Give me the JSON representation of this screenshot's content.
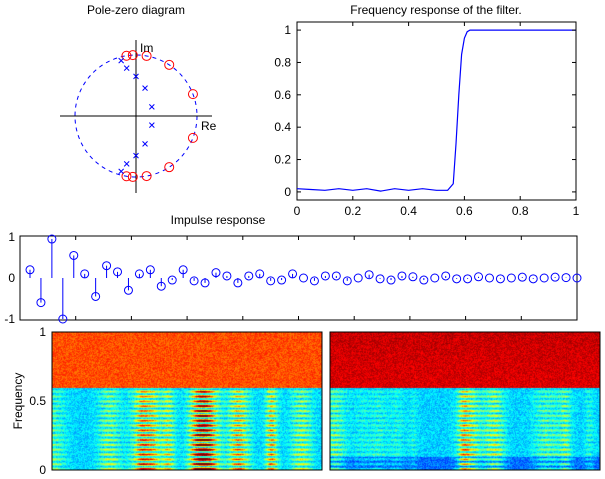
{
  "chart_data": [
    {
      "type": "scatter",
      "title": "Pole-zero diagram",
      "xlabel": "Re",
      "ylabel": "Im",
      "unit_circle": true,
      "zeros_angles_deg": [
        99,
        93,
        80,
        57,
        21,
        -21,
        -57,
        -80,
        -93,
        -99
      ],
      "poles": [
        {
          "r": 0.94,
          "angle_deg": 105
        },
        {
          "r": 0.8,
          "angle_deg": 101
        },
        {
          "r": 0.65,
          "angle_deg": 90
        },
        {
          "r": 0.48,
          "angle_deg": 72
        },
        {
          "r": 0.3,
          "angle_deg": 30
        },
        {
          "r": 0.94,
          "angle_deg": -105
        },
        {
          "r": 0.8,
          "angle_deg": -101
        },
        {
          "r": 0.65,
          "angle_deg": -90
        },
        {
          "r": 0.48,
          "angle_deg": -72
        },
        {
          "r": 0.3,
          "angle_deg": -30
        }
      ],
      "colors": {
        "zeros": "#ff0000",
        "poles": "#0000ff",
        "circle": "#0000ff"
      }
    },
    {
      "type": "line",
      "title": "Frequency response of the filter.",
      "xlim": [
        0,
        1
      ],
      "ylim": [
        -0.05,
        1.05
      ],
      "xticks": [
        "0",
        "0.2",
        "0.4",
        "0.6",
        "0.8",
        "1"
      ],
      "yticks": [
        "0",
        "0.2",
        "0.4",
        "0.6",
        "0.8",
        "1"
      ],
      "x": [
        0,
        0.05,
        0.1,
        0.15,
        0.2,
        0.25,
        0.3,
        0.35,
        0.4,
        0.45,
        0.5,
        0.54,
        0.56,
        0.57,
        0.58,
        0.59,
        0.6,
        0.61,
        0.62,
        0.65,
        0.7,
        0.8,
        0.9,
        1.0
      ],
      "y": [
        0.02,
        0.015,
        0.01,
        0.02,
        0.01,
        0.02,
        0.005,
        0.02,
        0.01,
        0.02,
        0.01,
        0.01,
        0.05,
        0.3,
        0.6,
        0.85,
        0.95,
        0.99,
        1.0,
        1.0,
        1.0,
        1.0,
        1.0,
        1.0
      ],
      "color": "#0000ff"
    },
    {
      "type": "stem",
      "title": "Impulse response",
      "ylim": [
        -1,
        1
      ],
      "yticks": [
        "-1",
        "0",
        "1"
      ],
      "values": [
        0.2,
        -0.6,
        0.95,
        -1,
        0.55,
        0.1,
        -0.45,
        0.3,
        0.15,
        -0.3,
        0.1,
        0.2,
        -0.2,
        -0.05,
        0.2,
        -0.07,
        -0.12,
        0.13,
        0.05,
        -0.12,
        0.05,
        0.1,
        -0.07,
        -0.05,
        0.1,
        0,
        -0.07,
        0.05,
        0.05,
        -0.07,
        0,
        0.08,
        -0.02,
        -0.05,
        0.05,
        0.03,
        -0.05,
        0,
        0.05,
        -0.02,
        -0.02,
        0.03,
        0,
        -0.02,
        0,
        0.02,
        -0.02,
        0,
        0.02,
        0.01,
        0
      ],
      "color": "#0000ff"
    },
    {
      "type": "heatmap",
      "title": "",
      "ylabel": "Frequency",
      "yticks": [
        "0",
        "0.5",
        "1"
      ],
      "cutoff": 0.6,
      "variant": "original"
    },
    {
      "type": "heatmap",
      "title": "",
      "cutoff": 0.6,
      "variant": "filtered"
    }
  ]
}
